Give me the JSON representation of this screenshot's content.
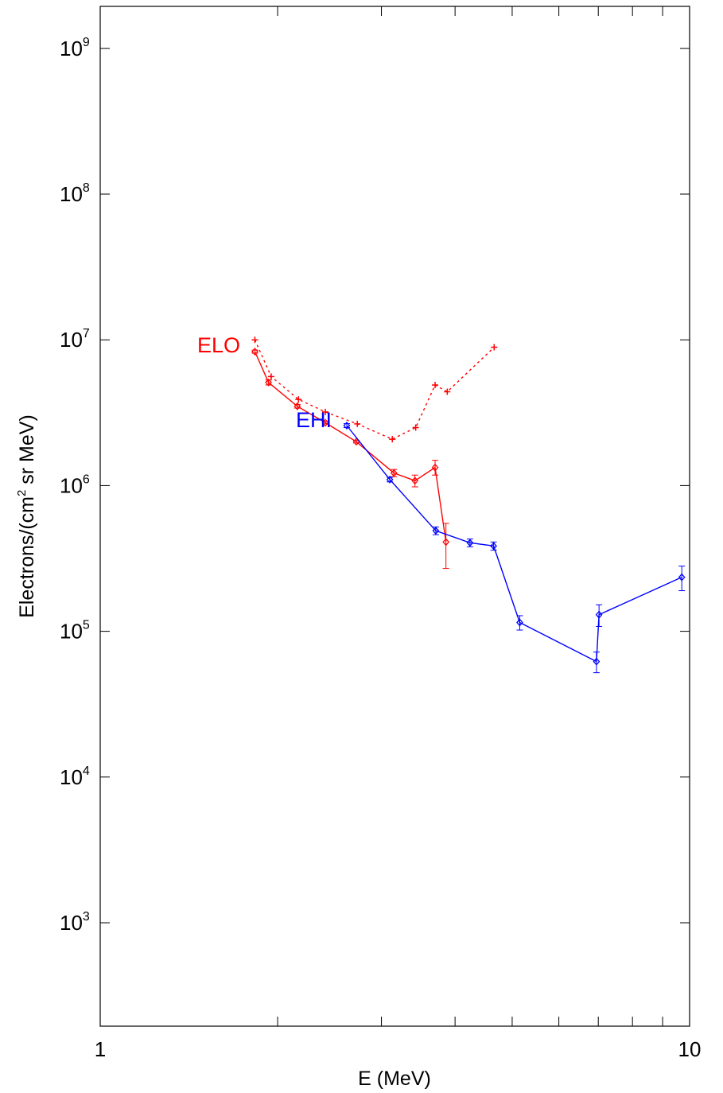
{
  "chart_data": {
    "type": "line",
    "xlabel": "E (MeV)",
    "ylabel_main": "Electrons/(cm",
    "ylabel_sup": "2",
    "ylabel_tail": " sr MeV)",
    "xscale": "log",
    "yscale": "log",
    "xlim": [
      1,
      10
    ],
    "ylim": [
      200,
      20000000000
    ],
    "x_ticks": [
      {
        "value": 1,
        "label": "1"
      },
      {
        "value": 10,
        "label": "10"
      }
    ],
    "y_ticks": [
      {
        "value": 1000,
        "label_base": "10",
        "label_exp": "3"
      },
      {
        "value": 10000,
        "label_base": "10",
        "label_exp": "4"
      },
      {
        "value": 100000,
        "label_base": "10",
        "label_exp": "5"
      },
      {
        "value": 1000000,
        "label_base": "10",
        "label_exp": "6"
      },
      {
        "value": 10000000,
        "label_base": "10",
        "label_exp": "7"
      },
      {
        "value": 100000000,
        "label_base": "10",
        "label_exp": "8"
      },
      {
        "value": 1000000000,
        "label_base": "10",
        "label_exp": "9"
      }
    ],
    "series": [
      {
        "name": "ELO",
        "color": "#ff0000",
        "line": "solid",
        "marker": "diamond",
        "x": [
          1.83,
          1.93,
          2.16,
          2.41,
          2.72,
          3.15,
          3.42,
          3.7,
          3.86
        ],
        "y": [
          8300000,
          5100000,
          3500000,
          2700000,
          2000000,
          1220000,
          1080000,
          1330000,
          410000
        ],
        "yerr_low": [
          8100000,
          4900000,
          3400000,
          2650000,
          1960000,
          1150000,
          980000,
          1180000,
          270000
        ],
        "yerr_high": [
          8500000,
          5300000,
          3600000,
          2750000,
          2040000,
          1290000,
          1180000,
          1490000,
          550000
        ]
      },
      {
        "name": "",
        "color": "#ff0000",
        "line": "dotted",
        "marker": "plus",
        "x": [
          1.83,
          1.95,
          2.17,
          2.41,
          2.73,
          3.13,
          3.43,
          3.7,
          3.88,
          4.66
        ],
        "y": [
          10000000,
          5600000,
          3900000,
          3200000,
          2650000,
          2080000,
          2500000,
          4900000,
          4400000,
          8900000
        ]
      },
      {
        "name": "EHI",
        "color": "#0000ff",
        "line": "solid",
        "marker": "diamond",
        "x": [
          2.62,
          3.1,
          3.71,
          4.24,
          4.65,
          5.15,
          6.95,
          7.02,
          9.7
        ],
        "y": [
          2580000,
          1100000,
          490000,
          405000,
          385000,
          115000,
          62000,
          130000,
          235000
        ],
        "yerr_low": [
          2500000,
          1060000,
          460000,
          380000,
          360000,
          102000,
          52000,
          108000,
          190000
        ],
        "yerr_high": [
          2660000,
          1140000,
          520000,
          430000,
          410000,
          128000,
          72000,
          152000,
          280000
        ]
      }
    ],
    "annotations": [
      {
        "text": "ELO",
        "color": "#ff0000",
        "x": 1.55,
        "y": 9300000
      },
      {
        "text": "EHI",
        "color": "#0000ff",
        "x": 2.27,
        "y": 2800000
      }
    ]
  }
}
